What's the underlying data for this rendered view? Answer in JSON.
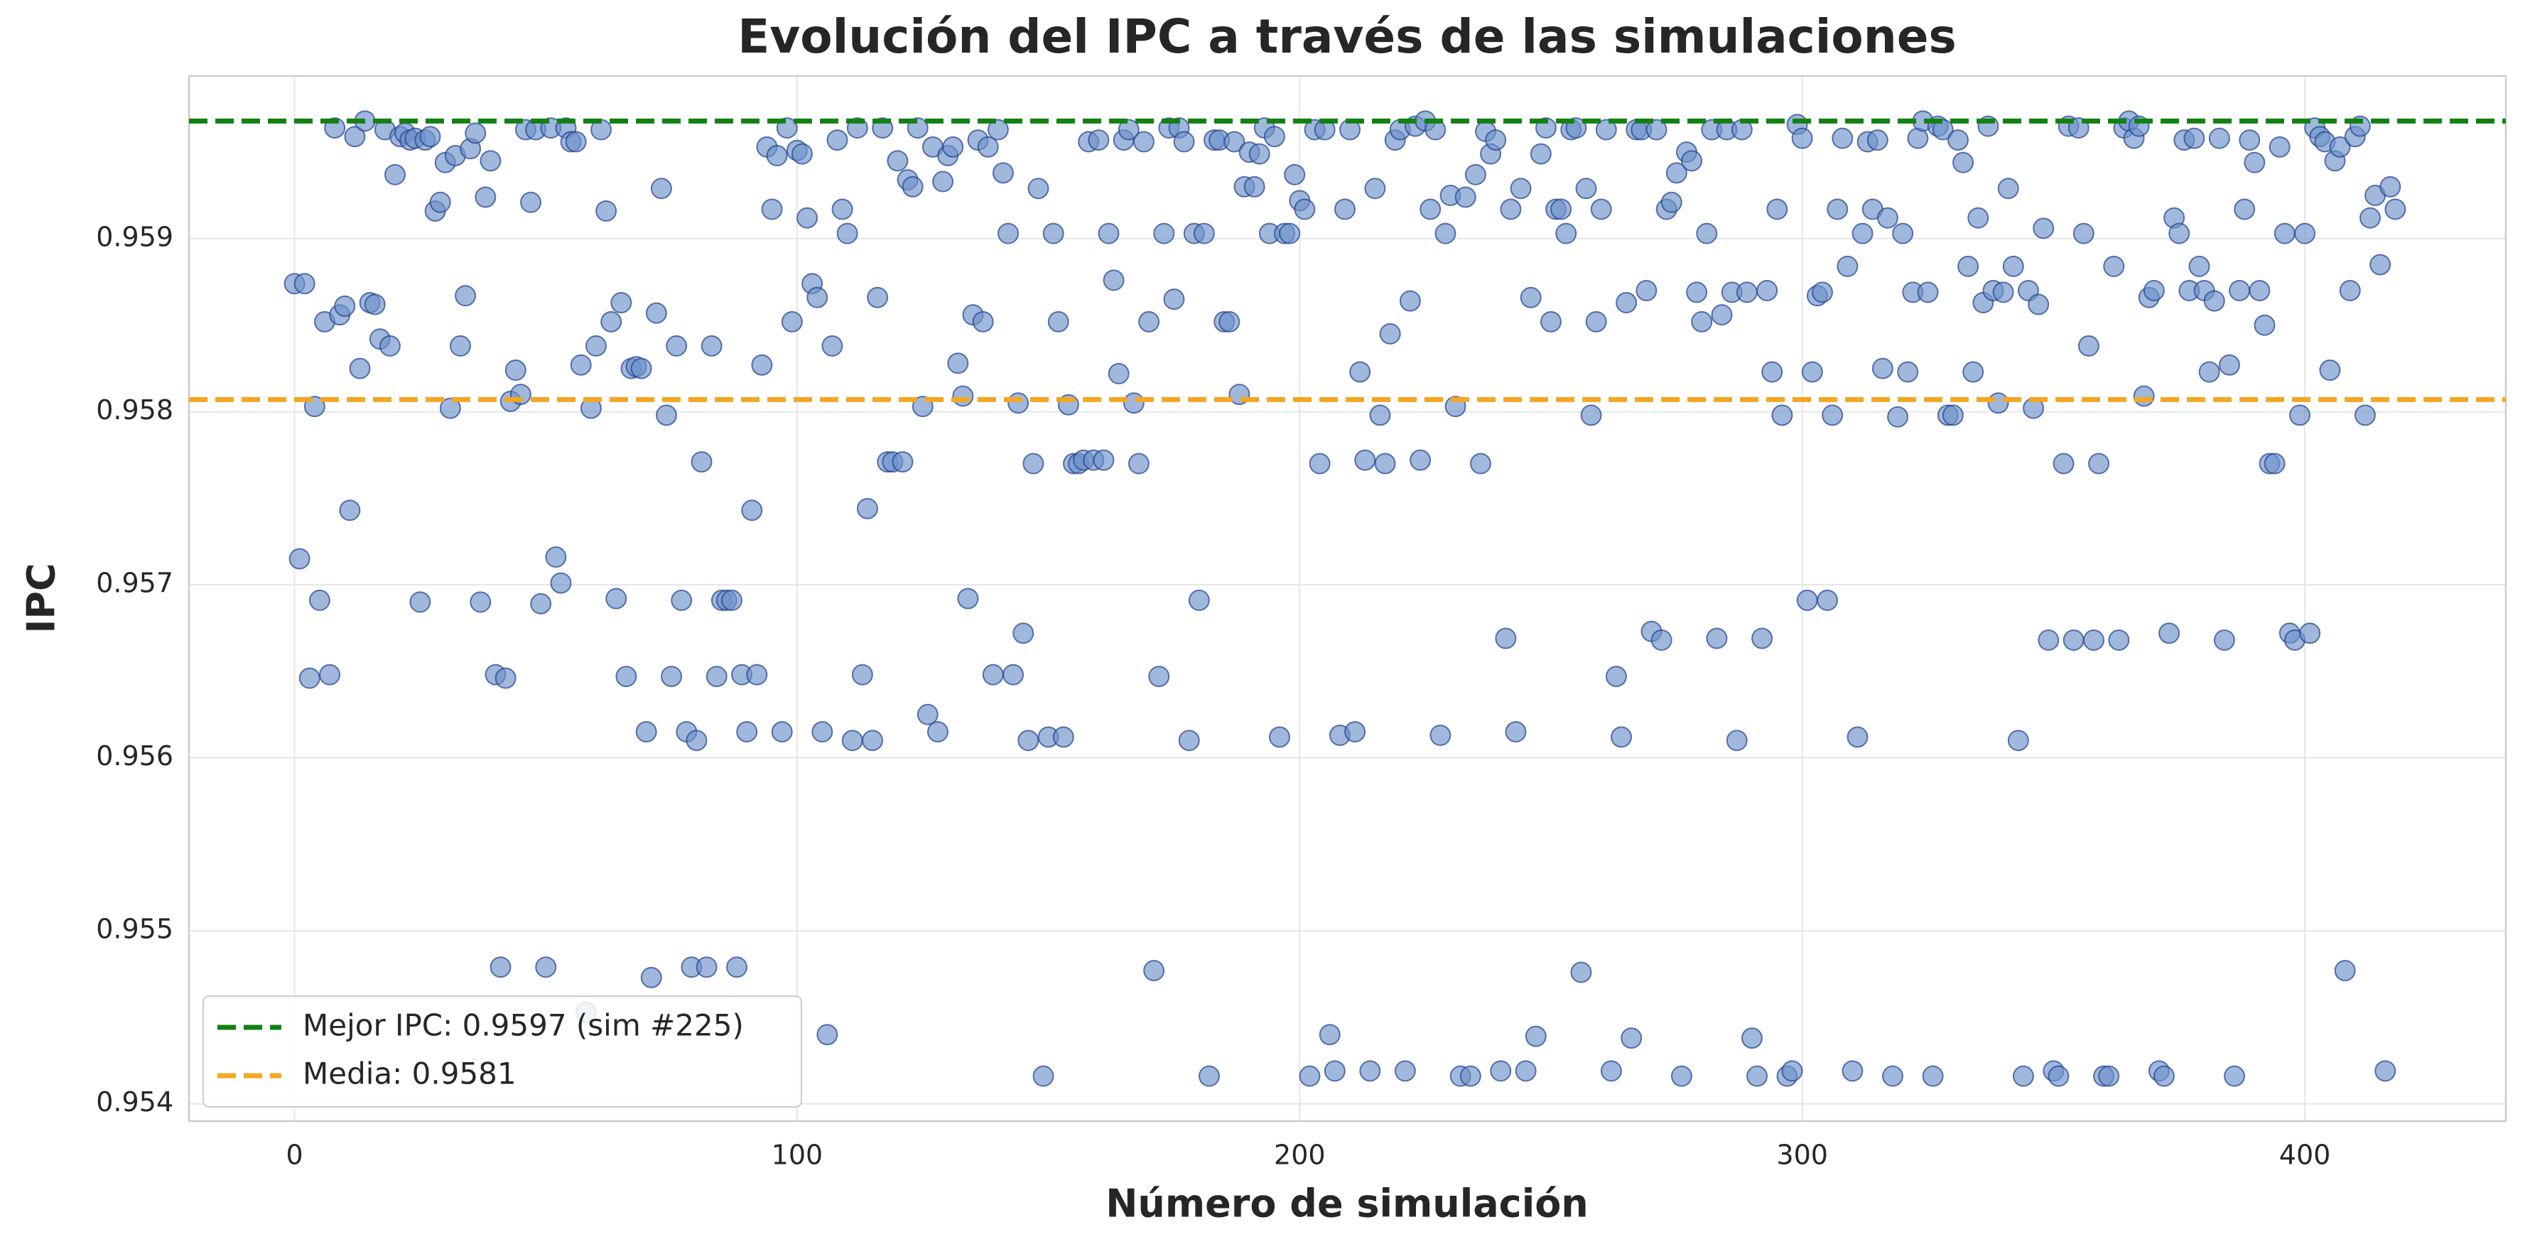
{
  "chart_data": {
    "type": "scatter",
    "title": "Evolución del IPC a través de las simulaciones",
    "xlabel": "Número de simulación",
    "ylabel": "IPC",
    "xlim": [
      -21,
      440
    ],
    "xticks": [
      0,
      100,
      200,
      300,
      400
    ],
    "ylim": [
      0.9539,
      0.95994
    ],
    "yticks": [
      0.954,
      0.955,
      0.956,
      0.957,
      0.958,
      0.959
    ],
    "grid": true,
    "legend": "lower left",
    "color": "#6d92c9",
    "edgecolor": "#1f3f8f",
    "hlines": [
      {
        "name": "Mejor IPC: 0.9597 (sim #225)",
        "value": 0.95968,
        "color": "#138013"
      },
      {
        "name": "Media: 0.9581",
        "value": 0.95807,
        "color": "#f5a623"
      }
    ],
    "x": [
      0,
      1,
      2,
      3,
      4,
      5,
      6,
      7,
      8,
      9,
      10,
      11,
      12,
      13,
      14,
      15,
      16,
      17,
      18,
      19,
      20,
      21,
      22,
      23,
      24,
      25,
      26,
      27,
      28,
      29,
      30,
      31,
      32,
      33,
      34,
      35,
      36,
      37,
      38,
      39,
      40,
      41,
      42,
      43,
      44,
      45,
      46,
      47,
      48,
      49,
      50,
      51,
      52,
      53,
      54,
      55,
      56,
      57,
      58,
      59,
      60,
      61,
      62,
      63,
      64,
      65,
      66,
      67,
      68,
      69,
      70,
      71,
      72,
      73,
      74,
      75,
      76,
      77,
      78,
      79,
      80,
      81,
      82,
      83,
      84,
      85,
      86,
      87,
      88,
      89,
      90,
      91,
      92,
      93,
      94,
      95,
      96,
      97,
      98,
      99,
      100,
      101,
      102,
      103,
      104,
      105,
      106,
      107,
      108,
      109,
      110,
      111,
      112,
      113,
      114,
      115,
      116,
      117,
      118,
      119,
      120,
      121,
      122,
      123,
      124,
      125,
      126,
      127,
      128,
      129,
      130,
      131,
      132,
      133,
      134,
      135,
      136,
      137,
      138,
      139,
      140,
      141,
      142,
      143,
      144,
      145,
      146,
      147,
      148,
      149,
      150,
      151,
      152,
      153,
      154,
      155,
      156,
      157,
      158,
      159,
      160,
      161,
      162,
      163,
      164,
      165,
      166,
      167,
      168,
      169,
      170,
      171,
      172,
      173,
      174,
      175,
      176,
      177,
      178,
      179,
      180,
      181,
      182,
      183,
      184,
      185,
      186,
      187,
      188,
      189,
      190,
      191,
      192,
      193,
      194,
      195,
      196,
      197,
      198,
      199,
      200,
      201,
      202,
      203,
      204,
      205,
      206,
      207,
      208,
      209,
      210,
      211,
      212,
      213,
      214,
      215,
      216,
      217,
      218,
      219,
      220,
      221,
      222,
      223,
      224,
      225,
      226,
      227,
      228,
      229,
      230,
      231,
      232,
      233,
      234,
      235,
      236,
      237,
      238,
      239,
      240,
      241,
      242,
      243,
      244,
      245,
      246,
      247,
      248,
      249,
      250,
      251,
      252,
      253,
      254,
      255,
      256,
      257,
      258,
      259,
      260,
      261,
      262,
      263,
      264,
      265,
      266,
      267,
      268,
      269,
      270,
      271,
      272,
      273,
      274,
      275,
      276,
      277,
      278,
      279,
      280,
      281,
      282,
      283,
      284,
      285,
      286,
      287,
      288,
      289,
      290,
      291,
      292,
      293,
      294,
      295,
      296,
      297,
      298,
      299,
      300,
      301,
      302,
      303,
      304,
      305,
      306,
      307,
      308,
      309,
      310,
      311,
      312,
      313,
      314,
      315,
      316,
      317,
      318,
      319,
      320,
      321,
      322,
      323,
      324,
      325,
      326,
      327,
      328,
      329,
      330,
      331,
      332,
      333,
      334,
      335,
      336,
      337,
      338,
      339,
      340,
      341,
      342,
      343,
      344,
      345,
      346,
      347,
      348,
      349,
      350,
      351,
      352,
      353,
      354,
      355,
      356,
      357,
      358,
      359,
      360,
      361,
      362,
      363,
      364,
      365,
      366,
      367,
      368,
      369,
      370,
      371,
      372,
      373,
      374,
      375,
      376,
      377,
      378,
      379,
      380,
      381,
      382,
      383,
      384,
      385,
      386,
      387,
      388,
      389,
      390,
      391,
      392,
      393,
      394,
      395,
      396,
      397,
      398,
      399,
      400,
      401,
      402,
      403,
      404,
      405,
      406,
      407,
      408,
      409,
      410,
      411,
      412,
      413,
      414,
      415,
      416,
      417,
      418
    ],
    "values": [
      0.95874,
      0.95715,
      0.95874,
      0.95646,
      0.95803,
      0.95691,
      0.95852,
      0.95648,
      0.95964,
      0.95856,
      0.95861,
      0.95743,
      0.95959,
      0.95825,
      0.95968,
      0.95863,
      0.95862,
      0.95842,
      0.95963,
      0.95838,
      0.95937,
      0.95959,
      0.95961,
      0.95957,
      0.95958,
      0.9569,
      0.95957,
      0.95959,
      0.95916,
      0.95921,
      0.95944,
      0.95802,
      0.95948,
      0.95838,
      0.95867,
      0.95952,
      0.95961,
      0.9569,
      0.95924,
      0.95945,
      0.95648,
      0.95479,
      0.95646,
      0.95806,
      0.95824,
      0.9581,
      0.95963,
      0.95921,
      0.95963,
      0.95689,
      0.95479,
      0.95964,
      0.95716,
      0.95701,
      0.95964,
      0.95956,
      0.95956,
      0.95827,
      0.95453,
      0.95802,
      0.95838,
      0.95963,
      0.95916,
      0.95852,
      0.95692,
      0.95863,
      0.95647,
      0.95825,
      0.95826,
      0.95825,
      0.95615,
      0.95473,
      0.95857,
      0.95929,
      0.95798,
      0.95647,
      0.95838,
      0.95691,
      0.95615,
      0.95479,
      0.9561,
      0.95771,
      0.95479,
      0.95838,
      0.95647,
      0.95691,
      0.95691,
      0.95691,
      0.95479,
      0.95648,
      0.95615,
      0.95743,
      0.95648,
      0.95827,
      0.95953,
      0.95917,
      0.95948,
      0.95615,
      0.95964,
      0.95852,
      0.95951,
      0.95949,
      0.95912,
      0.95874,
      0.95866,
      0.95615,
      0.9544,
      0.95838,
      0.95957,
      0.95917,
      0.95903,
      0.9561,
      0.95964,
      0.95648,
      0.95744,
      0.9561,
      0.95866,
      0.95964,
      0.95771,
      0.95771,
      0.95945,
      0.95771,
      0.95934,
      0.9593,
      0.95964,
      0.95803,
      0.95625,
      0.95953,
      0.95615,
      0.95933,
      0.95948,
      0.95953,
      0.95828,
      0.95809,
      0.95692,
      0.95856,
      0.95957,
      0.95852,
      0.95953,
      0.95648,
      0.95963,
      0.95938,
      0.95903,
      0.95648,
      0.95805,
      0.95672,
      0.9561,
      0.9577,
      0.95929,
      0.95416,
      0.95612,
      0.95903,
      0.95852,
      0.95612,
      0.95804,
      0.9577,
      0.9577,
      0.95772,
      0.95956,
      0.95772,
      0.95957,
      0.95772,
      0.95903,
      0.95876,
      0.95822,
      0.95957,
      0.95963,
      0.95805,
      0.9577,
      0.95956,
      0.95852,
      0.95477,
      0.95647,
      0.95903,
      0.95964,
      0.95865,
      0.95964,
      0.95956,
      0.9561,
      0.95903,
      0.95691,
      0.95903,
      0.95416,
      0.95957,
      0.95957,
      0.95852,
      0.95852,
      0.95956,
      0.9581,
      0.9593,
      0.9595,
      0.9593,
      0.95949,
      0.95964,
      0.95903,
      0.95959,
      0.95612,
      0.95903,
      0.95903,
      0.95937,
      0.95922,
      0.95917,
      0.95416,
      0.95963,
      0.9577,
      0.95963,
      0.9544,
      0.95419,
      0.95613,
      0.95917,
      0.95963,
      0.95615,
      0.95823,
      0.95772,
      0.95419,
      0.95929,
      0.95798,
      0.9577,
      0.95845,
      0.95957,
      0.95963,
      0.95419,
      0.95864,
      0.95965,
      0.95772,
      0.95968,
      0.95917,
      0.95963,
      0.95613,
      0.95903,
      0.95925,
      0.95803,
      0.95416,
      0.95924,
      0.95416,
      0.95937,
      0.9577,
      0.95962,
      0.95949,
      0.95957,
      0.95419,
      0.95669,
      0.95917,
      0.95615,
      0.95929,
      0.95419,
      0.95866,
      0.95439,
      0.95949,
      0.95964,
      0.95852,
      0.95917,
      0.95917,
      0.95903,
      0.95963,
      0.95964,
      0.95476,
      0.95929,
      0.95798,
      0.95852,
      0.95917,
      0.95963,
      0.95419,
      0.95647,
      0.95612,
      0.95863,
      0.95438,
      0.95963,
      0.95963,
      0.9587,
      0.95673,
      0.95963,
      0.95668,
      0.95917,
      0.95921,
      0.95938,
      0.95416,
      0.9595,
      0.95945,
      0.95869,
      0.95852,
      0.95903,
      0.95963,
      0.95669,
      0.95856,
      0.95963,
      0.95869,
      0.9561,
      0.95963,
      0.95869,
      0.95438,
      0.95416,
      0.95669,
      0.9587,
      0.95823,
      0.95917,
      0.95798,
      0.95416,
      0.95419,
      0.95966,
      0.95958,
      0.95691,
      0.95823,
      0.95867,
      0.95869,
      0.95691,
      0.95798,
      0.95917,
      0.95958,
      0.95884,
      0.95419,
      0.95612,
      0.95903,
      0.95956,
      0.95917,
      0.95957,
      0.95825,
      0.95912,
      0.95416,
      0.95797,
      0.95903,
      0.95823,
      0.95869,
      0.95958,
      0.95968,
      0.95869,
      0.95416,
      0.95965,
      0.95963,
      0.95798,
      0.95798,
      0.95957,
      0.95944,
      0.95884,
      0.95823,
      0.95912,
      0.95863,
      0.95965,
      0.9587,
      0.95805,
      0.95869,
      0.95929,
      0.95884,
      0.9561,
      0.95416,
      0.9587,
      0.95802,
      0.95862,
      0.95906,
      0.95668,
      0.95419,
      0.95416,
      0.9577,
      0.95965,
      0.95668,
      0.95964,
      0.95903,
      0.95838,
      0.95668,
      0.9577,
      0.95416,
      0.95416,
      0.95884,
      0.95668,
      0.95964,
      0.95968,
      0.95958,
      0.95965,
      0.95809,
      0.95866,
      0.9587,
      0.95419,
      0.95416,
      0.95672,
      0.95912,
      0.95903,
      0.95957,
      0.9587,
      0.95958,
      0.95884,
      0.9587,
      0.95823,
      0.95864,
      0.95958,
      0.95668,
      0.95827,
      0.95416,
      0.9587,
      0.95917,
      0.95957,
      0.95944,
      0.9587,
      0.9585,
      0.9577,
      0.9577,
      0.95953,
      0.95903,
      0.95672,
      0.95668,
      0.95798,
      0.95903,
      0.95672,
      0.95964,
      0.95959,
      0.95956,
      0.95824,
      0.95945,
      0.95953,
      0.95477,
      0.9587,
      0.95959,
      0.95965,
      0.95798,
      0.95912,
      0.95925,
      0.95885,
      0.95419,
      0.9593,
      0.95917
    ]
  }
}
